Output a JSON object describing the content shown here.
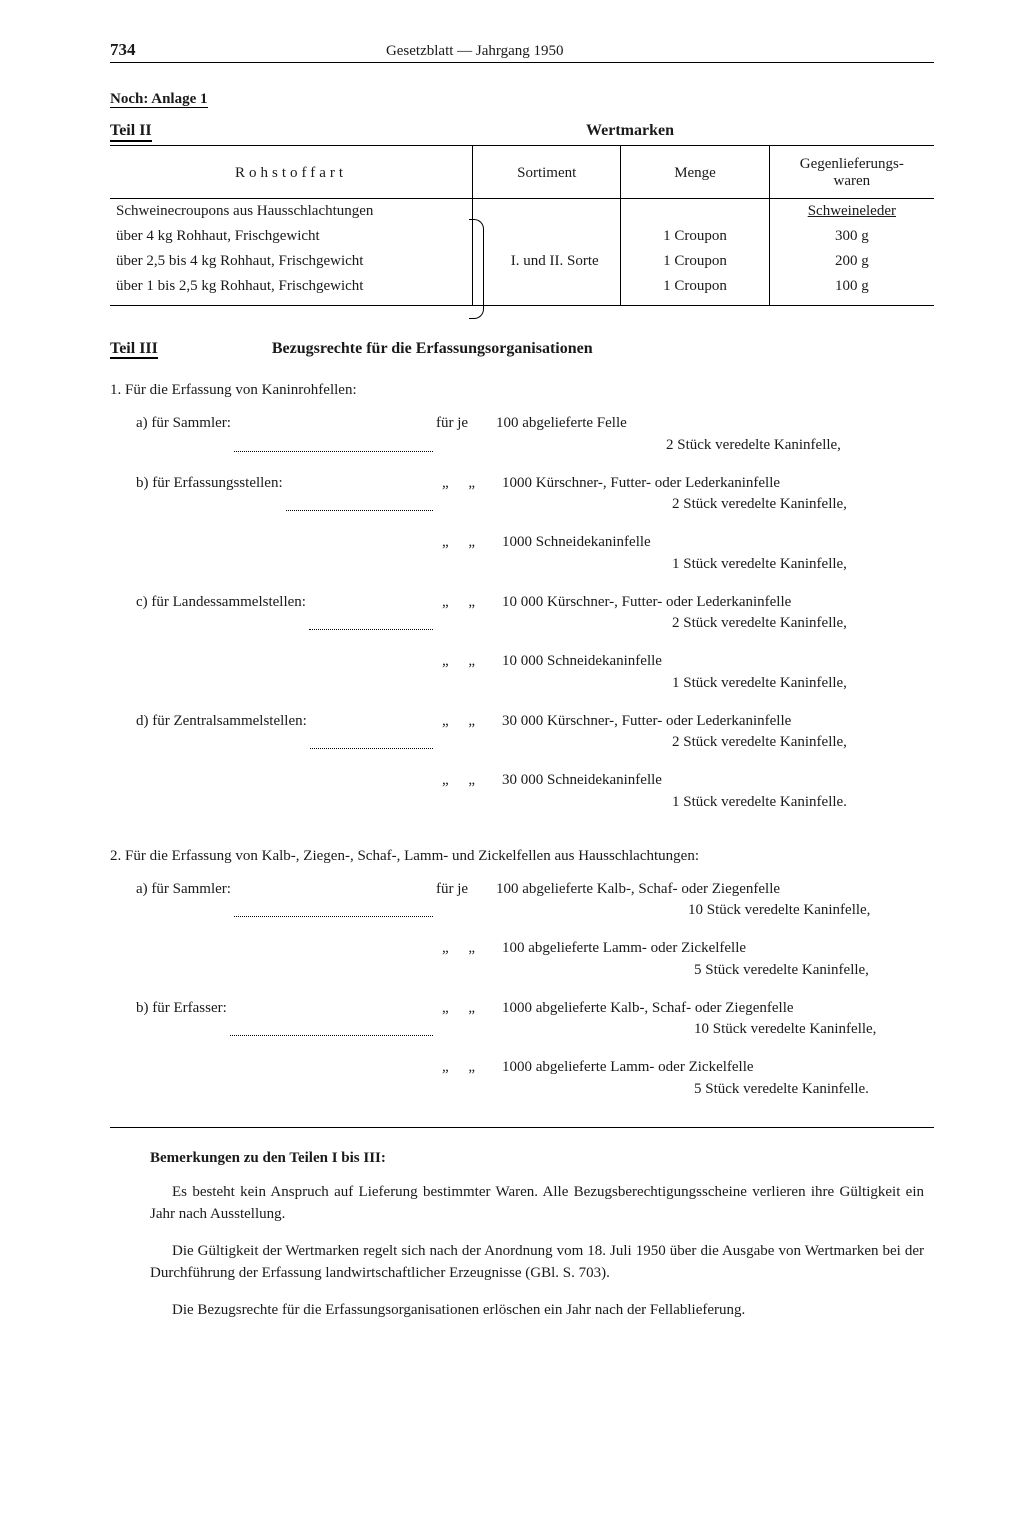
{
  "header": {
    "page_number": "734",
    "center": "Gesetzblatt — Jahrgang 1950"
  },
  "noch": "Noch: Anlage 1",
  "teil2": {
    "label": "Teil II",
    "title": "Wertmarken",
    "columns": {
      "c1": "Rohstoffart",
      "c2": "Sortiment",
      "c3": "Menge",
      "c4": "Gegenlieferungs-\nwaren"
    },
    "group_label": "Schweinecroupons aus Hausschlachtungen",
    "group_counter": "Schweineleder",
    "sortiment": "I. und II. Sorte",
    "rows": [
      {
        "r": "über 4 kg Rohhaut, Frischgewicht",
        "m": "1 Croupon",
        "g": "300 g"
      },
      {
        "r": "über 2,5 bis 4 kg Rohhaut, Frischgewicht",
        "m": "1 Croupon",
        "g": "200 g"
      },
      {
        "r": "über 1 bis 2,5 kg Rohhaut, Frischgewicht",
        "m": "1 Croupon",
        "g": "100 g"
      }
    ]
  },
  "teil3": {
    "label": "Teil III",
    "title": "Bezugsrechte für die Erfassungsorganisationen",
    "sec1_head": "1. Für die Erfassung von Kaninrohfellen:",
    "fuer_je": "für je",
    "ditto": "„    „",
    "sec1": [
      {
        "label": "a) für Sammler:",
        "fj": true,
        "line1": "100 abgelieferte Felle",
        "line2": "2 Stück veredelte Kaninfelle,"
      },
      {
        "label": "b) für Erfassungsstellen:",
        "fj": false,
        "line1": "1000 Kürschner-, Futter- oder Lederkaninfelle",
        "line2": "2 Stück veredelte Kaninfelle,"
      },
      {
        "label": "",
        "fj": false,
        "line1": "1000 Schneidekaninfelle",
        "line2": "1 Stück veredelte Kaninfelle,"
      },
      {
        "label": "c) für Landessammelstellen:",
        "fj": false,
        "line1": "10 000 Kürschner-, Futter- oder Lederkaninfelle",
        "line2": "2 Stück veredelte Kaninfelle,"
      },
      {
        "label": "",
        "fj": false,
        "line1": "10 000 Schneidekaninfelle",
        "line2": "1 Stück veredelte Kaninfelle,"
      },
      {
        "label": "d) für Zentralsammelstellen:",
        "fj": false,
        "line1": "30 000 Kürschner-, Futter- oder Lederkaninfelle",
        "line2": "2 Stück veredelte Kaninfelle,"
      },
      {
        "label": "",
        "fj": false,
        "line1": "30 000 Schneidekaninfelle",
        "line2": "1 Stück veredelte Kaninfelle."
      }
    ],
    "sec2_head": "2. Für die Erfassung von Kalb-, Ziegen-, Schaf-, Lamm- und Zickelfellen aus Hausschlachtungen:",
    "sec2": [
      {
        "label": "a) für Sammler:",
        "fj": true,
        "line1": "100 abgelieferte Kalb-, Schaf- oder Ziegenfelle",
        "line2": "10 Stück veredelte Kaninfelle,"
      },
      {
        "label": "",
        "fj": false,
        "line1": "100 abgelieferte Lamm- oder Zickelfelle",
        "line2": "5 Stück veredelte Kaninfelle,"
      },
      {
        "label": "b) für Erfasser:",
        "fj": false,
        "line1": "1000 abgelieferte Kalb-, Schaf- oder Ziegenfelle",
        "line2": "10 Stück veredelte Kaninfelle,"
      },
      {
        "label": "",
        "fj": false,
        "line1": "1000 abgelieferte Lamm- oder Zickelfelle",
        "line2": "5 Stück veredelte Kaninfelle."
      }
    ]
  },
  "remarks": {
    "head": "Bemerkungen zu den Teilen I bis III:",
    "p1": "Es besteht kein Anspruch auf Lieferung bestimmter Waren. Alle Bezugsberechtigungsscheine verlieren ihre Gültigkeit ein Jahr nach Ausstellung.",
    "p2": "Die Gültigkeit der Wertmarken regelt sich nach der Anordnung vom 18. Juli 1950 über die Ausgabe von Wertmarken bei der Durchführung der Erfassung landwirtschaftlicher Erzeugnisse (GBl. S. 703).",
    "p3": "Die Bezugsrechte für die Erfassungsorganisationen erlöschen ein Jahr nach der Fellablieferung."
  },
  "style": {
    "text_color": "#1a1a1a",
    "background": "#ffffff",
    "rule_color": "#000000",
    "body_font_pt": 15,
    "bold_font_pt": 16
  }
}
